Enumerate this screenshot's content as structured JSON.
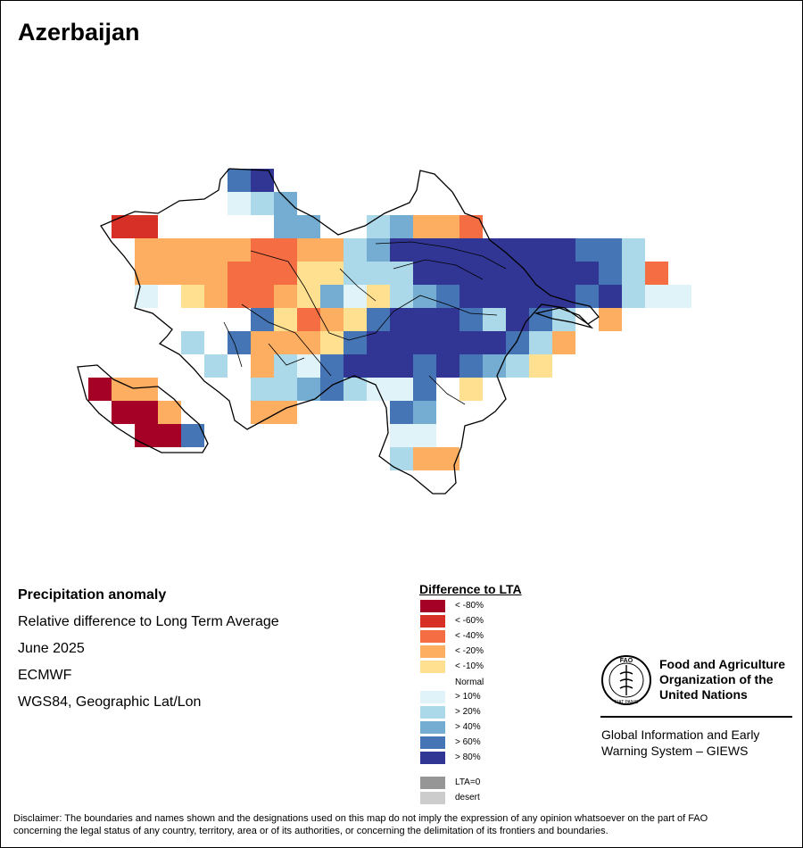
{
  "map": {
    "title": "Azerbaijan"
  },
  "meta": {
    "title": "Precipitation anomaly",
    "subtitle": "Relative difference to Long Term Average",
    "date": "June 2025",
    "model": "ECMWF",
    "projection": "WGS84, Geographic Lat/Lon"
  },
  "legend": {
    "title": "Difference to LTA",
    "items": [
      {
        "label": "< -80%",
        "color": "#a50026"
      },
      {
        "label": "< -60%",
        "color": "#d73027"
      },
      {
        "label": "< -40%",
        "color": "#f46d43"
      },
      {
        "label": "< -20%",
        "color": "#fdae61"
      },
      {
        "label": "< -10%",
        "color": "#fee090"
      },
      {
        "label": "Normal",
        "color": "#ffffff"
      },
      {
        "label": "> 10%",
        "color": "#e0f3f8"
      },
      {
        "label": "> 20%",
        "color": "#abd9e9"
      },
      {
        "label": "> 40%",
        "color": "#74add1"
      },
      {
        "label": "> 60%",
        "color": "#4575b4"
      },
      {
        "label": "> 80%",
        "color": "#313695"
      },
      {
        "label": "LTA=0",
        "color": "#969696"
      },
      {
        "label": "desert",
        "color": "#cccccc"
      }
    ]
  },
  "org": {
    "line1": "Food and Agriculture",
    "line2": "Organization of the",
    "line3": "United Nations",
    "logo_text": "FAO",
    "logo_motto": "FIAT PANIS",
    "giews_line1": "Global Information and Early",
    "giews_line2": "Warning System – GIEWS"
  },
  "disclaimer": {
    "line1": "Disclaimer: The boundaries and names shown and the designations used on this map do not imply the expression of any opinion whatsoever on the part of FAO",
    "line2": "concerning the legal status of any country, territory, area or of its authorities, or concerning the delimitation of its frontiers and boundaries."
  }
}
